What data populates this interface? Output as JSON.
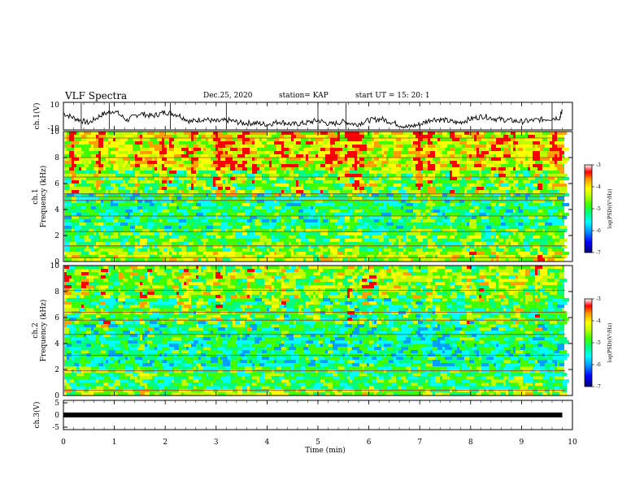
{
  "header": {
    "title": "VLF Spectra",
    "date": "Dec.25, 2020",
    "station": "station= KAP",
    "start": "start  UT =   15: 20: 1"
  },
  "colors": {
    "spectrum_scale": [
      "#000070",
      "#0000ff",
      "#00a0ff",
      "#00ffff",
      "#00ff80",
      "#40ff00",
      "#c0ff00",
      "#ffff00",
      "#ffa000",
      "#ff0000",
      "#ffffff"
    ],
    "trace": "#000000"
  },
  "chart_data": [
    {
      "type": "line",
      "name": "ch1-waveform",
      "ylabel": "ch.1(V)",
      "ylim": [
        -10,
        10
      ],
      "yticks": [
        "10",
        "-10"
      ],
      "xlim": [
        0,
        10
      ],
      "series": [
        {
          "x": [
            0,
            0.25,
            0.5,
            0.75,
            1.0,
            1.25,
            1.5,
            1.75,
            2.0,
            2.25,
            2.5,
            2.75,
            3.0,
            3.25,
            3.5,
            3.75,
            4.0,
            4.25,
            4.5,
            4.75,
            5.0,
            5.25,
            5.5,
            5.75,
            6.0,
            6.25,
            6.5,
            6.75,
            7.0,
            7.25,
            7.5,
            7.75,
            8.0,
            8.25,
            8.5,
            8.75,
            9.0,
            9.25,
            9.5,
            9.75,
            9.8
          ],
          "y": [
            2,
            -2,
            -5,
            1,
            4,
            -3,
            2,
            0,
            3,
            1,
            -4,
            -2,
            -4,
            -3,
            -5,
            -5,
            -6,
            -4,
            -6,
            -5,
            -3,
            -6,
            -4,
            -6,
            -3,
            -2,
            -5,
            -8,
            -6,
            -2,
            -3,
            -5,
            -2,
            0,
            -2,
            -3,
            -4,
            -3,
            -2,
            -1,
            4
          ]
        }
      ]
    },
    {
      "type": "heatmap",
      "name": "ch1-spectrogram",
      "ylabel": "ch.1 Frequency (kHz)",
      "yticks": [
        0,
        2,
        4,
        6,
        8,
        10
      ],
      "xlim": [
        0,
        10
      ],
      "ylim": [
        0,
        10
      ],
      "colorbar": {
        "label": "log(PSD)(V²/Hz)",
        "range": [
          -7,
          -3
        ],
        "ticks": [
          "-3",
          "-4",
          "-5",
          "-6",
          "-7"
        ]
      },
      "bands_khz": [
        {
          "from": 0,
          "to": 0.8,
          "level": -4.5
        },
        {
          "from": 0.8,
          "to": 2.5,
          "level": -5.0
        },
        {
          "from": 2.5,
          "to": 5.2,
          "level": -5.3
        },
        {
          "from": 5.2,
          "to": 7.0,
          "level": -4.9
        },
        {
          "from": 7.0,
          "to": 10,
          "level": -4.3
        }
      ],
      "tones_khz": [
        0.3,
        1.2,
        2.3,
        3.5,
        4.7,
        5.0,
        5.2,
        6.5,
        8.0,
        9.5
      ]
    },
    {
      "type": "heatmap",
      "name": "ch2-spectrogram",
      "ylabel": "ch.2 Frequency (kHz)",
      "yticks": [
        0,
        2,
        4,
        6,
        8,
        10
      ],
      "xlim": [
        0,
        10
      ],
      "ylim": [
        0,
        10
      ],
      "colorbar": {
        "label": "log(PSD)(V²/Hz)",
        "range": [
          -7,
          -3
        ],
        "ticks": [
          "-3",
          "-4",
          "-5",
          "-6",
          "-7"
        ]
      },
      "bands_khz": [
        {
          "from": 0,
          "to": 0.6,
          "level": -4.6
        },
        {
          "from": 0.6,
          "to": 2.2,
          "level": -5.1
        },
        {
          "from": 2.2,
          "to": 5.5,
          "level": -5.4
        },
        {
          "from": 5.5,
          "to": 7.5,
          "level": -5.2
        },
        {
          "from": 7.5,
          "to": 10,
          "level": -4.8
        }
      ],
      "tones_khz": [
        0.4,
        1.9,
        3.1,
        4.7,
        5.8,
        6.4,
        8.1
      ]
    },
    {
      "type": "line",
      "name": "ch3-level",
      "ylabel": "ch.3(V)",
      "ylim": [
        -5,
        5
      ],
      "yticks": [
        "5",
        "0",
        "-5"
      ],
      "xlim": [
        0,
        10
      ],
      "xlabel": "Time  (min)",
      "xticks": [
        "0",
        "1",
        "2",
        "3",
        "4",
        "5",
        "6",
        "7",
        "8",
        "9",
        "10"
      ],
      "series": [
        {
          "x": [
            0,
            9.8
          ],
          "y": [
            0,
            0
          ]
        }
      ]
    }
  ]
}
